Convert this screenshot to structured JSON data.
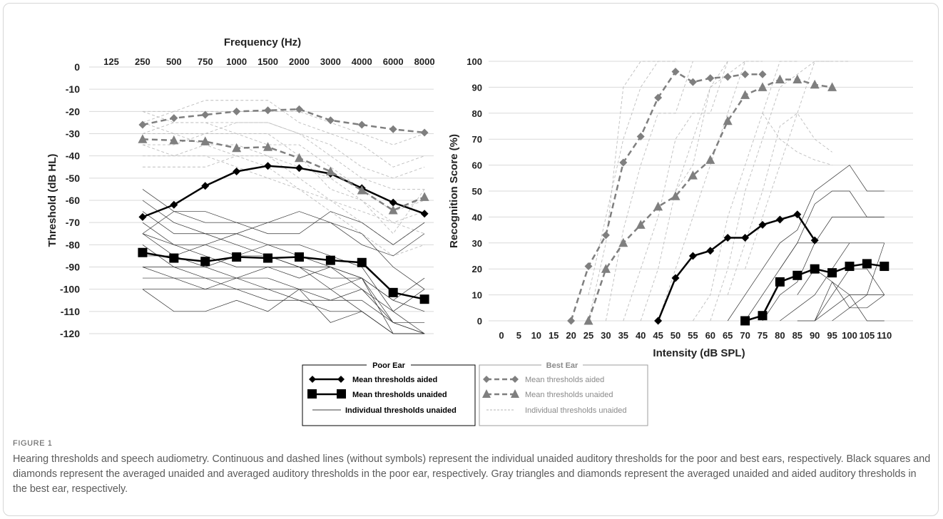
{
  "figure": {
    "label": "FIGURE 1",
    "caption": "Hearing thresholds and speech audiometry. Continuous and dashed lines (without symbols) represent the individual unaided auditory thresholds for the poor and best ears, respectively. Black squares and diamonds represent the averaged unaided and averaged auditory thresholds in the poor ear, respectively. Gray triangles and diamonds represent the averaged unaided and aided auditory thresholds in the best ear, respectively."
  },
  "legend": {
    "poor_title": "Poor Ear",
    "best_title": "Best Ear",
    "poor_items": [
      "Mean thresholds aided",
      "Mean thresholds unaided",
      "Individual thresholds unaided"
    ],
    "best_items": [
      "Mean thresholds aided",
      "Mean thresholds unaided",
      "Individual thresholds unaided"
    ]
  },
  "colors": {
    "poor": "#000000",
    "best": "#7f7f7f",
    "indiv_best": "#bdbdbd",
    "grid": "#d9d9d9"
  },
  "chart_data": [
    {
      "type": "line",
      "title": "",
      "xlabel": "Frequency (Hz)",
      "ylabel": "Threshold (dB HL)",
      "x_axis_position": "top",
      "categories": [
        "125",
        "250",
        "500",
        "750",
        "1000",
        "1500",
        "2000",
        "3000",
        "4000",
        "6000",
        "8000"
      ],
      "ylim": [
        -120,
        0
      ],
      "yticks": [
        0,
        -10,
        -20,
        -30,
        -40,
        -50,
        -60,
        -70,
        -80,
        -90,
        -100,
        -110,
        -120
      ],
      "grid": true,
      "series": [
        {
          "name": "Mean thresholds aided",
          "ear": "Poor Ear",
          "color": "#000000",
          "marker": "diamond",
          "dashed": false,
          "values": [
            null,
            -67.5,
            -62,
            -53.5,
            -47,
            -44.5,
            -45.5,
            -48,
            -54.5,
            -61,
            -66
          ]
        },
        {
          "name": "Mean thresholds unaided",
          "ear": "Poor Ear",
          "color": "#000000",
          "marker": "square",
          "dashed": false,
          "values": [
            null,
            -83.5,
            -86,
            -87.5,
            -85.5,
            -86,
            -85.5,
            -87,
            -88,
            -101.5,
            -104.5
          ]
        },
        {
          "name": "Mean thresholds aided",
          "ear": "Best Ear",
          "color": "#7f7f7f",
          "marker": "diamond",
          "dashed": true,
          "values": [
            null,
            -26,
            -23,
            -21.5,
            -20,
            -19.5,
            -19,
            -24,
            -26,
            -28,
            -29.5
          ]
        },
        {
          "name": "Mean thresholds unaided",
          "ear": "Best Ear",
          "color": "#7f7f7f",
          "marker": "triangle",
          "dashed": true,
          "values": [
            null,
            -32.5,
            -33,
            -33.5,
            -36.5,
            -36,
            -41,
            -47,
            -55.5,
            -64.5,
            -58.5
          ]
        }
      ],
      "individual_poor": [
        [
          null,
          -55,
          -65,
          -65,
          -70,
          -70,
          -70,
          -70,
          -75,
          -90,
          -100
        ],
        [
          null,
          -60,
          -70,
          -75,
          -80,
          -85,
          -90,
          -90,
          -95,
          -105,
          -110
        ],
        [
          null,
          -65,
          -75,
          -75,
          -75,
          -80,
          -80,
          -85,
          -90,
          -110,
          -120
        ],
        [
          null,
          -70,
          -80,
          -80,
          -85,
          -80,
          -85,
          -90,
          -95,
          -120,
          -120
        ],
        [
          null,
          -75,
          -80,
          -85,
          -90,
          -90,
          -90,
          -95,
          -95,
          -115,
          -115
        ],
        [
          null,
          -75,
          -85,
          -90,
          -95,
          -95,
          -100,
          -100,
          -110,
          -120,
          -120
        ],
        [
          null,
          -80,
          -90,
          -95,
          -95,
          -100,
          -100,
          -105,
          -105,
          -115,
          -120
        ],
        [
          null,
          -90,
          -95,
          -95,
          -100,
          -105,
          -105,
          -110,
          -110,
          -120,
          -120
        ],
        [
          null,
          -95,
          -95,
          -100,
          -100,
          -100,
          -105,
          -105,
          -100,
          -115,
          -120
        ],
        [
          null,
          -100,
          -110,
          -110,
          -105,
          -110,
          -100,
          -115,
          -110,
          -120,
          -120
        ],
        [
          null,
          -75,
          -65,
          -70,
          -70,
          -75,
          -75,
          -65,
          -70,
          -80,
          -70
        ],
        [
          null,
          -85,
          -85,
          -80,
          -75,
          -70,
          -65,
          -70,
          -80,
          -85,
          -75
        ],
        [
          null,
          -90,
          -90,
          -90,
          -85,
          -85,
          -90,
          -100,
          -95,
          -105,
          -95
        ],
        [
          null,
          -100,
          -100,
          -100,
          -95,
          -90,
          -95,
          -90,
          -100,
          -110,
          -100
        ]
      ],
      "individual_best": [
        [
          null,
          -20,
          -20,
          -15,
          -15,
          -15,
          -25,
          -30,
          -35,
          -45,
          -40
        ],
        [
          null,
          -25,
          -20,
          -20,
          -20,
          -20,
          -20,
          -25,
          -30,
          -35,
          -30
        ],
        [
          null,
          -30,
          -25,
          -25,
          -25,
          -25,
          -30,
          -40,
          -50,
          -55,
          -55
        ],
        [
          null,
          -35,
          -35,
          -30,
          -30,
          -35,
          -35,
          -45,
          -55,
          -65,
          -60
        ],
        [
          null,
          -40,
          -40,
          -40,
          -45,
          -50,
          -55,
          -60,
          -65,
          -70,
          -65
        ],
        [
          null,
          -45,
          -45,
          -45,
          -40,
          -40,
          -45,
          -50,
          -60,
          -75,
          -55
        ],
        [
          null,
          -20,
          -25,
          -25,
          -30,
          -30,
          -40,
          -55,
          -60,
          -70,
          -75
        ],
        [
          null,
          -30,
          -30,
          -35,
          -35,
          -40,
          -50,
          -60,
          -70,
          -80,
          -70
        ],
        [
          null,
          -35,
          -40,
          -35,
          -40,
          -45,
          -55,
          -65,
          -75,
          -85,
          -80
        ],
        [
          null,
          -25,
          -30,
          -30,
          -25,
          -25,
          -30,
          -35,
          -45,
          -50,
          -45
        ]
      ]
    },
    {
      "type": "line",
      "title": "",
      "xlabel": "Intensity (dB SPL)",
      "ylabel": "Recognition Score (%)",
      "categories": [
        "0",
        "5",
        "10",
        "15",
        "20",
        "25",
        "30",
        "35",
        "40",
        "45",
        "50",
        "55",
        "60",
        "65",
        "70",
        "75",
        "80",
        "85",
        "90",
        "95",
        "100",
        "105",
        "110"
      ],
      "ylim": [
        0,
        100
      ],
      "yticks": [
        0,
        10,
        20,
        30,
        40,
        50,
        60,
        70,
        80,
        90,
        100
      ],
      "grid": true,
      "series": [
        {
          "name": "Mean thresholds aided",
          "ear": "Poor Ear",
          "color": "#000000",
          "marker": "diamond",
          "dashed": false,
          "x": [
            45,
            50,
            55,
            60,
            65,
            70,
            75,
            80,
            85,
            90
          ],
          "values": [
            0,
            16.5,
            25,
            27,
            32,
            32,
            37,
            39,
            41,
            31
          ]
        },
        {
          "name": "Mean thresholds unaided",
          "ear": "Poor Ear",
          "color": "#000000",
          "marker": "square",
          "dashed": false,
          "x": [
            70,
            75,
            80,
            85,
            90,
            95,
            100,
            105,
            110
          ],
          "values": [
            0,
            2,
            15,
            17.5,
            20,
            18.5,
            21,
            22,
            21
          ]
        },
        {
          "name": "Mean thresholds aided",
          "ear": "Best Ear",
          "color": "#7f7f7f",
          "marker": "diamond",
          "dashed": true,
          "x": [
            20,
            25,
            30,
            35,
            40,
            45,
            50,
            55,
            60,
            65,
            70,
            75
          ],
          "values": [
            0,
            21,
            33,
            61,
            71,
            86,
            96,
            92,
            93.5,
            94,
            95,
            95
          ]
        },
        {
          "name": "Mean thresholds unaided",
          "ear": "Best Ear",
          "color": "#7f7f7f",
          "marker": "triangle",
          "dashed": true,
          "x": [
            25,
            30,
            35,
            40,
            45,
            50,
            55,
            60,
            65,
            70,
            75,
            80,
            85,
            90,
            95
          ],
          "values": [
            0,
            20,
            30,
            37,
            44,
            48,
            56,
            62,
            77,
            87,
            90,
            93,
            93,
            91,
            90
          ]
        }
      ],
      "individual_poor": [
        [
          [
            65,
            0
          ],
          [
            70,
            10
          ],
          [
            75,
            20
          ],
          [
            80,
            30
          ],
          [
            85,
            35
          ],
          [
            90,
            50
          ],
          [
            95,
            55
          ],
          [
            100,
            60
          ],
          [
            105,
            50
          ],
          [
            110,
            50
          ]
        ],
        [
          [
            70,
            0
          ],
          [
            75,
            10
          ],
          [
            80,
            20
          ],
          [
            85,
            30
          ],
          [
            90,
            45
          ],
          [
            95,
            50
          ],
          [
            100,
            50
          ],
          [
            105,
            40
          ],
          [
            110,
            40
          ]
        ],
        [
          [
            75,
            0
          ],
          [
            80,
            10
          ],
          [
            85,
            15
          ],
          [
            90,
            30
          ],
          [
            95,
            40
          ],
          [
            100,
            40
          ],
          [
            105,
            40
          ],
          [
            110,
            40
          ]
        ],
        [
          [
            80,
            0
          ],
          [
            85,
            5
          ],
          [
            90,
            10
          ],
          [
            95,
            20
          ],
          [
            100,
            30
          ],
          [
            105,
            30
          ],
          [
            110,
            30
          ]
        ],
        [
          [
            85,
            0
          ],
          [
            90,
            0
          ],
          [
            95,
            10
          ],
          [
            100,
            20
          ],
          [
            105,
            20
          ],
          [
            110,
            10
          ]
        ],
        [
          [
            90,
            0
          ],
          [
            95,
            5
          ],
          [
            100,
            10
          ],
          [
            105,
            10
          ],
          [
            110,
            10
          ]
        ],
        [
          [
            95,
            0
          ],
          [
            100,
            5
          ],
          [
            105,
            5
          ],
          [
            110,
            10
          ]
        ],
        [
          [
            85,
            10
          ],
          [
            90,
            20
          ],
          [
            95,
            15
          ],
          [
            100,
            10
          ],
          [
            105,
            0
          ],
          [
            110,
            0
          ]
        ],
        [
          [
            80,
            20
          ],
          [
            85,
            30
          ],
          [
            90,
            30
          ],
          [
            95,
            30
          ],
          [
            100,
            30
          ]
        ],
        [
          [
            90,
            0
          ],
          [
            95,
            15
          ],
          [
            100,
            5
          ],
          [
            105,
            10
          ],
          [
            110,
            30
          ]
        ]
      ],
      "individual_best": [
        [
          [
            25,
            0
          ],
          [
            30,
            30
          ],
          [
            35,
            90
          ],
          [
            40,
            100
          ],
          [
            45,
            100
          ],
          [
            50,
            100
          ]
        ],
        [
          [
            25,
            10
          ],
          [
            30,
            40
          ],
          [
            35,
            70
          ],
          [
            40,
            90
          ],
          [
            45,
            100
          ],
          [
            50,
            100
          ]
        ],
        [
          [
            30,
            0
          ],
          [
            35,
            35
          ],
          [
            40,
            60
          ],
          [
            45,
            80
          ],
          [
            50,
            80
          ],
          [
            55,
            100
          ]
        ],
        [
          [
            35,
            0
          ],
          [
            40,
            20
          ],
          [
            45,
            40
          ],
          [
            50,
            70
          ],
          [
            55,
            80
          ],
          [
            60,
            80
          ],
          [
            65,
            100
          ]
        ],
        [
          [
            40,
            0
          ],
          [
            45,
            20
          ],
          [
            50,
            50
          ],
          [
            55,
            60
          ],
          [
            60,
            90
          ],
          [
            65,
            100
          ]
        ],
        [
          [
            45,
            0
          ],
          [
            50,
            20
          ],
          [
            55,
            40
          ],
          [
            60,
            60
          ],
          [
            65,
            80
          ],
          [
            70,
            100
          ],
          [
            75,
            100
          ]
        ],
        [
          [
            55,
            0
          ],
          [
            60,
            10
          ],
          [
            65,
            40
          ],
          [
            70,
            60
          ],
          [
            75,
            80
          ],
          [
            80,
            100
          ],
          [
            85,
            100
          ]
        ],
        [
          [
            60,
            0
          ],
          [
            65,
            20
          ],
          [
            70,
            50
          ],
          [
            75,
            70
          ],
          [
            80,
            90
          ],
          [
            85,
            95
          ],
          [
            90,
            100
          ],
          [
            95,
            100
          ]
        ],
        [
          [
            65,
            10
          ],
          [
            70,
            30
          ],
          [
            75,
            50
          ],
          [
            80,
            75
          ],
          [
            85,
            80
          ],
          [
            90,
            70
          ],
          [
            95,
            65
          ]
        ],
        [
          [
            70,
            20
          ],
          [
            75,
            40
          ],
          [
            80,
            60
          ],
          [
            85,
            80
          ],
          [
            90,
            100
          ],
          [
            95,
            100
          ],
          [
            100,
            100
          ]
        ],
        [
          [
            50,
            50
          ],
          [
            55,
            70
          ],
          [
            60,
            90
          ],
          [
            65,
            95
          ],
          [
            70,
            100
          ]
        ],
        [
          [
            75,
            80
          ],
          [
            80,
            70
          ],
          [
            85,
            65
          ],
          [
            90,
            62
          ],
          [
            95,
            60
          ]
        ]
      ]
    }
  ]
}
